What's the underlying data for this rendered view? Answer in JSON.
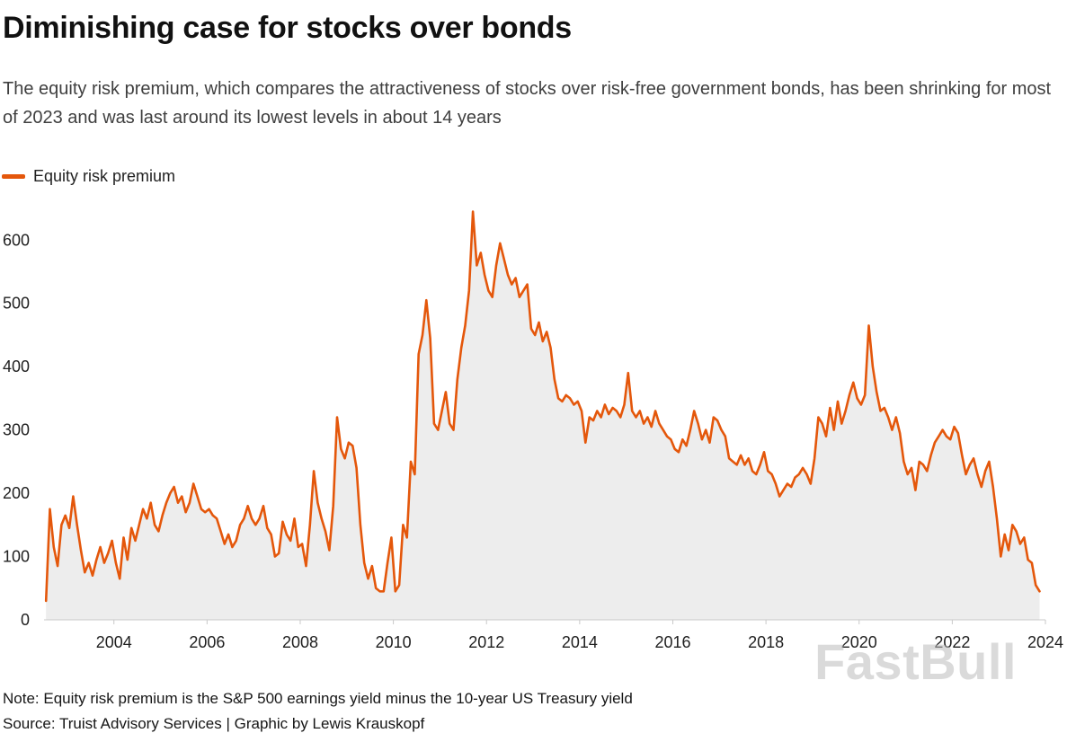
{
  "page": {
    "title": "Diminishing case for stocks over bonds",
    "subtitle": "The equity risk premium, which compares the attractiveness of stocks over risk-free government bonds, has been shrinking for most of 2023 and was last around its lowest levels in about 14 years",
    "note": "Note: Equity risk premium is the S&P 500 earnings yield minus the 10-year US Treasury yield",
    "source": "Source: Truist Advisory Services | Graphic by Lewis Krauskopf",
    "watermark": "FastBull"
  },
  "legend": {
    "label": "Equity risk premium",
    "color": "#E4570B"
  },
  "chart_data": {
    "type": "area",
    "title": "Diminishing case for stocks over bonds",
    "legend_entries": [
      "Equity risk premium"
    ],
    "legend_position": "top-left",
    "grid": false,
    "xlabel": "",
    "ylabel": "",
    "xlim": [
      2002.5,
      2024
    ],
    "ylim": [
      0,
      660
    ],
    "yticks": [
      0,
      100,
      200,
      300,
      400,
      500,
      600
    ],
    "xticks": [
      2004,
      2006,
      2008,
      2010,
      2012,
      2014,
      2016,
      2018,
      2020,
      2022,
      2024
    ],
    "line_color": "#E4570B",
    "fill_color": "#EDEDED",
    "series": [
      {
        "name": "Equity risk premium",
        "frequency": "monthly",
        "start_year": 2002,
        "start_month": 7,
        "values": [
          30,
          175,
          115,
          85,
          150,
          165,
          145,
          195,
          150,
          110,
          75,
          90,
          70,
          95,
          115,
          90,
          105,
          125,
          90,
          65,
          130,
          95,
          145,
          125,
          150,
          175,
          160,
          185,
          150,
          140,
          165,
          185,
          200,
          210,
          185,
          195,
          170,
          185,
          215,
          195,
          175,
          170,
          175,
          165,
          160,
          140,
          120,
          135,
          115,
          125,
          150,
          160,
          180,
          160,
          150,
          160,
          180,
          145,
          135,
          100,
          105,
          155,
          135,
          125,
          160,
          115,
          120,
          85,
          150,
          235,
          185,
          160,
          140,
          110,
          180,
          320,
          270,
          255,
          280,
          275,
          240,
          150,
          90,
          65,
          85,
          50,
          45,
          45,
          90,
          130,
          45,
          55,
          150,
          130,
          250,
          230,
          420,
          450,
          505,
          445,
          310,
          300,
          330,
          360,
          310,
          300,
          380,
          430,
          465,
          520,
          645,
          560,
          580,
          545,
          520,
          510,
          560,
          595,
          570,
          545,
          530,
          540,
          510,
          520,
          530,
          460,
          450,
          470,
          440,
          455,
          430,
          380,
          350,
          345,
          355,
          350,
          340,
          345,
          330,
          280,
          320,
          315,
          330,
          320,
          340,
          325,
          335,
          330,
          320,
          340,
          390,
          330,
          320,
          330,
          310,
          320,
          305,
          330,
          310,
          300,
          290,
          285,
          270,
          265,
          285,
          275,
          300,
          330,
          310,
          285,
          300,
          280,
          320,
          315,
          300,
          290,
          255,
          250,
          245,
          260,
          245,
          255,
          235,
          230,
          245,
          265,
          235,
          230,
          215,
          195,
          205,
          215,
          210,
          225,
          230,
          240,
          230,
          215,
          255,
          320,
          310,
          290,
          335,
          300,
          345,
          310,
          330,
          355,
          375,
          350,
          340,
          355,
          465,
          400,
          360,
          330,
          335,
          320,
          300,
          320,
          295,
          250,
          230,
          240,
          205,
          250,
          245,
          235,
          260,
          280,
          290,
          300,
          290,
          285,
          305,
          295,
          260,
          230,
          245,
          255,
          230,
          210,
          235,
          250,
          210,
          160,
          100,
          135,
          110,
          150,
          140,
          120,
          130,
          95,
          90,
          55,
          45
        ]
      }
    ]
  }
}
